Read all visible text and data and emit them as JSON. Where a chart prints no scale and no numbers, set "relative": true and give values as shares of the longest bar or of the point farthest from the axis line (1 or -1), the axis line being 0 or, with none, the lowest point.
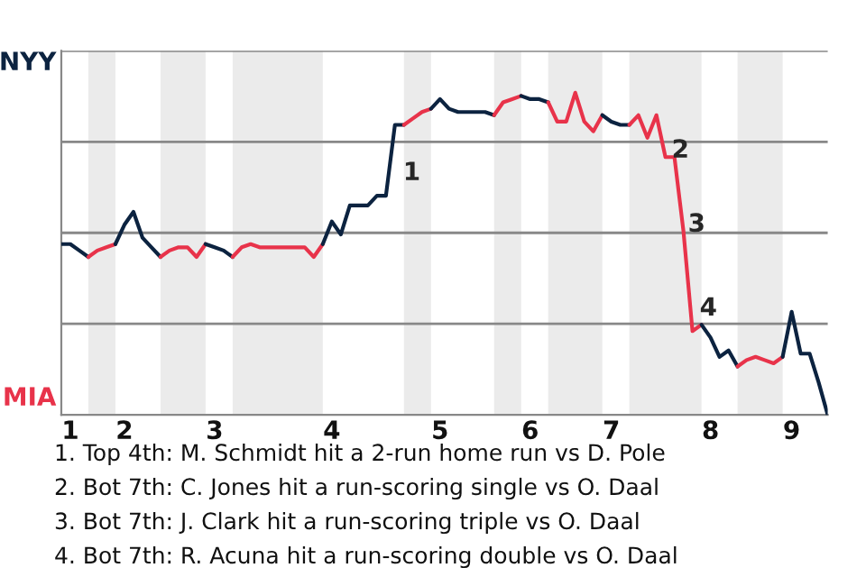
{
  "chart_data": {
    "type": "line",
    "relative": true,
    "grid": "y",
    "categories": [
      null,
      "1",
      null,
      null,
      null,
      null,
      null,
      "2",
      null,
      null,
      null,
      null,
      null,
      null,
      null,
      null,
      null,
      "3",
      null,
      null,
      null,
      null,
      null,
      null,
      null,
      null,
      null,
      null,
      null,
      null,
      "4",
      null,
      null,
      null,
      null,
      null,
      null,
      null,
      null,
      null,
      null,
      null,
      "5",
      null,
      null,
      null,
      null,
      null,
      null,
      null,
      null,
      null,
      "6",
      null,
      null,
      null,
      null,
      null,
      null,
      null,
      null,
      "7",
      null,
      null,
      null,
      null,
      null,
      null,
      null,
      null,
      null,
      null,
      "8",
      null,
      null,
      null,
      null,
      null,
      null,
      null,
      null,
      "9",
      null,
      null,
      null,
      null
    ],
    "series": [
      {
        "color": "#0c2340",
        "values": [
          0.53,
          0.53,
          0.51,
          0.49,
          null,
          null,
          null,
          null,
          null,
          null,
          null,
          null,
          null,
          null,
          null,
          null,
          null,
          null,
          null,
          null,
          null,
          null,
          null,
          null,
          null,
          null,
          null,
          null,
          null,
          null,
          null,
          null,
          null,
          null,
          null,
          null,
          null,
          null,
          null,
          null,
          null,
          null,
          null,
          null,
          null,
          null,
          null,
          null,
          null,
          null,
          null,
          null,
          null,
          null,
          null,
          null,
          null,
          null,
          null,
          null,
          null,
          null,
          null,
          null,
          null,
          null,
          null,
          null,
          null,
          null,
          null,
          null,
          null,
          null,
          null,
          null,
          null,
          null,
          null,
          null,
          null,
          null,
          null,
          null,
          null,
          null
        ]
      },
      {
        "color": "#e8334a",
        "values": [
          null,
          null,
          null,
          0.49,
          0.51,
          0.52,
          0.53,
          null,
          null,
          null,
          null,
          null,
          null,
          null,
          null,
          null,
          null,
          null,
          null,
          null,
          null,
          null,
          null,
          null,
          null,
          null,
          null,
          null,
          null,
          null,
          null,
          null,
          null,
          null,
          null,
          null,
          null,
          null,
          null,
          null,
          null,
          null,
          null,
          null,
          null,
          null,
          null,
          null,
          null,
          null,
          null,
          null,
          null,
          null,
          null,
          null,
          null,
          null,
          null,
          null,
          null,
          null,
          null,
          null,
          null,
          null,
          null,
          null,
          null,
          null,
          null,
          null,
          null,
          null,
          null,
          null,
          null,
          null,
          null,
          null,
          null,
          null,
          null,
          null,
          null,
          null
        ]
      },
      {
        "color": "#0c2340",
        "values": [
          null,
          null,
          null,
          null,
          null,
          null,
          0.53,
          0.59,
          0.63,
          0.55,
          0.52,
          0.49,
          null,
          null,
          null,
          null,
          null,
          null,
          null,
          null,
          null,
          null,
          null,
          null,
          null,
          null,
          null,
          null,
          null,
          null,
          null,
          null,
          null,
          null,
          null,
          null,
          null,
          null,
          null,
          null,
          null,
          null,
          null,
          null,
          null,
          null,
          null,
          null,
          null,
          null,
          null,
          null,
          null,
          null,
          null,
          null,
          null,
          null,
          null,
          null,
          null,
          null,
          null,
          null,
          null,
          null,
          null,
          null,
          null,
          null,
          null,
          null,
          null,
          null,
          null,
          null,
          null,
          null,
          null,
          null,
          null,
          null,
          null,
          null,
          null,
          null
        ]
      },
      {
        "color": "#e8334a",
        "values": [
          null,
          null,
          null,
          null,
          null,
          null,
          null,
          null,
          null,
          null,
          null,
          0.49,
          0.51,
          0.52,
          0.52,
          0.49,
          0.53,
          null,
          null,
          null,
          null,
          null,
          null,
          null,
          null,
          null,
          null,
          null,
          null,
          null,
          null,
          null,
          null,
          null,
          null,
          null,
          null,
          null,
          null,
          null,
          null,
          null,
          null,
          null,
          null,
          null,
          null,
          null,
          null,
          null,
          null,
          null,
          null,
          null,
          null,
          null,
          null,
          null,
          null,
          null,
          null,
          null,
          null,
          null,
          null,
          null,
          null,
          null,
          null,
          null,
          null,
          null,
          null,
          null,
          null,
          null,
          null,
          null,
          null,
          null,
          null,
          null,
          null,
          null,
          null,
          null
        ]
      },
      {
        "color": "#0c2340",
        "values": [
          null,
          null,
          null,
          null,
          null,
          null,
          null,
          null,
          null,
          null,
          null,
          null,
          null,
          null,
          null,
          null,
          0.53,
          0.52,
          0.51,
          0.49,
          null,
          null,
          null,
          null,
          null,
          null,
          null,
          null,
          null,
          null,
          null,
          null,
          null,
          null,
          null,
          null,
          null,
          null,
          null,
          null,
          null,
          null,
          null,
          null,
          null,
          null,
          null,
          null,
          null,
          null,
          null,
          null,
          null,
          null,
          null,
          null,
          null,
          null,
          null,
          null,
          null,
          null,
          null,
          null,
          null,
          null,
          null,
          null,
          null,
          null,
          null,
          null,
          null,
          null,
          null,
          null,
          null,
          null,
          null,
          null,
          null,
          null,
          null,
          null,
          null,
          null
        ]
      },
      {
        "color": "#e8334a",
        "values": [
          null,
          null,
          null,
          null,
          null,
          null,
          null,
          null,
          null,
          null,
          null,
          null,
          null,
          null,
          null,
          null,
          null,
          null,
          null,
          0.49,
          0.52,
          0.53,
          0.52,
          0.52,
          0.52,
          0.52,
          0.52,
          0.52,
          0.49,
          0.53,
          null,
          null,
          null,
          null,
          null,
          null,
          null,
          null,
          null,
          null,
          null,
          null,
          null,
          null,
          null,
          null,
          null,
          null,
          null,
          null,
          null,
          null,
          null,
          null,
          null,
          null,
          null,
          null,
          null,
          null,
          null,
          null,
          null,
          null,
          null,
          null,
          null,
          null,
          null,
          null,
          null,
          null,
          null,
          null,
          null,
          null,
          null,
          null,
          null,
          null,
          null,
          null,
          null,
          null,
          null,
          null
        ]
      },
      {
        "color": "#0c2340",
        "values": [
          null,
          null,
          null,
          null,
          null,
          null,
          null,
          null,
          null,
          null,
          null,
          null,
          null,
          null,
          null,
          null,
          null,
          null,
          null,
          null,
          null,
          null,
          null,
          null,
          null,
          null,
          null,
          null,
          null,
          0.53,
          0.6,
          0.56,
          0.65,
          0.65,
          0.65,
          0.68,
          0.68,
          0.9,
          0.9,
          null,
          null,
          null,
          null,
          null,
          null,
          null,
          null,
          null,
          null,
          null,
          null,
          null,
          null,
          null,
          null,
          null,
          null,
          null,
          null,
          null,
          null,
          null,
          null,
          null,
          null,
          null,
          null,
          null,
          null,
          null,
          null,
          null,
          null,
          null,
          null,
          null,
          null,
          null,
          null,
          null,
          null,
          null,
          null,
          null,
          null,
          null
        ]
      },
      {
        "color": "#e8334a",
        "values": [
          null,
          null,
          null,
          null,
          null,
          null,
          null,
          null,
          null,
          null,
          null,
          null,
          null,
          null,
          null,
          null,
          null,
          null,
          null,
          null,
          null,
          null,
          null,
          null,
          null,
          null,
          null,
          null,
          null,
          null,
          null,
          null,
          null,
          null,
          null,
          null,
          null,
          null,
          0.9,
          0.92,
          0.94,
          0.95,
          null,
          null,
          null,
          null,
          null,
          null,
          null,
          null,
          null,
          null,
          null,
          null,
          null,
          null,
          null,
          null,
          null,
          null,
          null,
          null,
          null,
          null,
          null,
          null,
          null,
          null,
          null,
          null,
          null,
          null,
          null,
          null,
          null,
          null,
          null,
          null,
          null,
          null,
          null,
          null,
          null,
          null,
          null,
          null
        ]
      },
      {
        "color": "#0c2340",
        "values": [
          null,
          null,
          null,
          null,
          null,
          null,
          null,
          null,
          null,
          null,
          null,
          null,
          null,
          null,
          null,
          null,
          null,
          null,
          null,
          null,
          null,
          null,
          null,
          null,
          null,
          null,
          null,
          null,
          null,
          null,
          null,
          null,
          null,
          null,
          null,
          null,
          null,
          null,
          null,
          null,
          null,
          0.95,
          0.98,
          0.95,
          0.94,
          0.94,
          0.94,
          0.94,
          0.93,
          null,
          null,
          null,
          null,
          null,
          null,
          null,
          null,
          null,
          null,
          null,
          null,
          null,
          null,
          null,
          null,
          null,
          null,
          null,
          null,
          null,
          null,
          null,
          null,
          null,
          null,
          null,
          null,
          null,
          null,
          null,
          null,
          null,
          null,
          null,
          null,
          null
        ]
      },
      {
        "color": "#e8334a",
        "values": [
          null,
          null,
          null,
          null,
          null,
          null,
          null,
          null,
          null,
          null,
          null,
          null,
          null,
          null,
          null,
          null,
          null,
          null,
          null,
          null,
          null,
          null,
          null,
          null,
          null,
          null,
          null,
          null,
          null,
          null,
          null,
          null,
          null,
          null,
          null,
          null,
          null,
          null,
          null,
          null,
          null,
          null,
          null,
          null,
          null,
          null,
          null,
          null,
          0.93,
          0.97,
          0.98,
          0.99,
          null,
          null,
          null,
          null,
          null,
          null,
          null,
          null,
          null,
          null,
          null,
          null,
          null,
          null,
          null,
          null,
          null,
          null,
          null,
          null,
          null,
          null,
          null,
          null,
          null,
          null,
          null,
          null,
          null,
          null,
          null,
          null,
          null,
          null
        ]
      },
      {
        "color": "#0c2340",
        "values": [
          null,
          null,
          null,
          null,
          null,
          null,
          null,
          null,
          null,
          null,
          null,
          null,
          null,
          null,
          null,
          null,
          null,
          null,
          null,
          null,
          null,
          null,
          null,
          null,
          null,
          null,
          null,
          null,
          null,
          null,
          null,
          null,
          null,
          null,
          null,
          null,
          null,
          null,
          null,
          null,
          null,
          null,
          null,
          null,
          null,
          null,
          null,
          null,
          null,
          null,
          null,
          0.99,
          0.98,
          0.98,
          0.97,
          null,
          null,
          null,
          null,
          null,
          null,
          null,
          null,
          null,
          null,
          null,
          null,
          null,
          null,
          null,
          null,
          null,
          null,
          null,
          null,
          null,
          null,
          null,
          null,
          null,
          null,
          null,
          null,
          null,
          null,
          null
        ]
      },
      {
        "color": "#e8334a",
        "values": [
          null,
          null,
          null,
          null,
          null,
          null,
          null,
          null,
          null,
          null,
          null,
          null,
          null,
          null,
          null,
          null,
          null,
          null,
          null,
          null,
          null,
          null,
          null,
          null,
          null,
          null,
          null,
          null,
          null,
          null,
          null,
          null,
          null,
          null,
          null,
          null,
          null,
          null,
          null,
          null,
          null,
          null,
          null,
          null,
          null,
          null,
          null,
          null,
          null,
          null,
          null,
          null,
          null,
          null,
          0.97,
          0.91,
          0.91,
          1,
          0.91,
          0.88,
          0.93,
          null,
          null,
          null,
          null,
          null,
          null,
          null,
          null,
          null,
          null,
          null,
          null,
          null,
          null,
          null,
          null,
          null,
          null,
          null,
          null,
          null,
          null,
          null,
          null,
          null
        ]
      },
      {
        "color": "#0c2340",
        "values": [
          null,
          null,
          null,
          null,
          null,
          null,
          null,
          null,
          null,
          null,
          null,
          null,
          null,
          null,
          null,
          null,
          null,
          null,
          null,
          null,
          null,
          null,
          null,
          null,
          null,
          null,
          null,
          null,
          null,
          null,
          null,
          null,
          null,
          null,
          null,
          null,
          null,
          null,
          null,
          null,
          null,
          null,
          null,
          null,
          null,
          null,
          null,
          null,
          null,
          null,
          null,
          null,
          null,
          null,
          null,
          null,
          null,
          null,
          null,
          null,
          0.93,
          0.91,
          0.9,
          0.9,
          null,
          null,
          null,
          null,
          null,
          null,
          null,
          null,
          null,
          null,
          null,
          null,
          null,
          null,
          null,
          null,
          null,
          null,
          null,
          null,
          null,
          null
        ]
      },
      {
        "color": "#e8334a",
        "values": [
          null,
          null,
          null,
          null,
          null,
          null,
          null,
          null,
          null,
          null,
          null,
          null,
          null,
          null,
          null,
          null,
          null,
          null,
          null,
          null,
          null,
          null,
          null,
          null,
          null,
          null,
          null,
          null,
          null,
          null,
          null,
          null,
          null,
          null,
          null,
          null,
          null,
          null,
          null,
          null,
          null,
          null,
          null,
          null,
          null,
          null,
          null,
          null,
          null,
          null,
          null,
          null,
          null,
          null,
          null,
          null,
          null,
          null,
          null,
          null,
          null,
          null,
          null,
          0.9,
          0.93,
          0.86,
          0.93,
          0.8,
          0.8,
          0.57,
          0.26,
          0.28,
          null,
          null,
          null,
          null,
          null,
          null,
          null,
          null,
          null,
          null,
          null,
          null,
          null,
          null
        ]
      },
      {
        "color": "#0c2340",
        "values": [
          null,
          null,
          null,
          null,
          null,
          null,
          null,
          null,
          null,
          null,
          null,
          null,
          null,
          null,
          null,
          null,
          null,
          null,
          null,
          null,
          null,
          null,
          null,
          null,
          null,
          null,
          null,
          null,
          null,
          null,
          null,
          null,
          null,
          null,
          null,
          null,
          null,
          null,
          null,
          null,
          null,
          null,
          null,
          null,
          null,
          null,
          null,
          null,
          null,
          null,
          null,
          null,
          null,
          null,
          null,
          null,
          null,
          null,
          null,
          null,
          null,
          null,
          null,
          null,
          null,
          null,
          null,
          null,
          null,
          null,
          null,
          0.28,
          0.24,
          0.18,
          0.2,
          0.15,
          null,
          null,
          null,
          null,
          null,
          null,
          null,
          null,
          null,
          null
        ]
      },
      {
        "color": "#e8334a",
        "values": [
          null,
          null,
          null,
          null,
          null,
          null,
          null,
          null,
          null,
          null,
          null,
          null,
          null,
          null,
          null,
          null,
          null,
          null,
          null,
          null,
          null,
          null,
          null,
          null,
          null,
          null,
          null,
          null,
          null,
          null,
          null,
          null,
          null,
          null,
          null,
          null,
          null,
          null,
          null,
          null,
          null,
          null,
          null,
          null,
          null,
          null,
          null,
          null,
          null,
          null,
          null,
          null,
          null,
          null,
          null,
          null,
          null,
          null,
          null,
          null,
          null,
          null,
          null,
          null,
          null,
          null,
          null,
          null,
          null,
          null,
          null,
          null,
          null,
          null,
          null,
          0.15,
          0.17,
          0.18,
          0.17,
          0.16,
          0.18,
          null,
          null,
          null,
          null,
          null
        ]
      },
      {
        "color": "#0c2340",
        "values": [
          null,
          null,
          null,
          null,
          null,
          null,
          null,
          null,
          null,
          null,
          null,
          null,
          null,
          null,
          null,
          null,
          null,
          null,
          null,
          null,
          null,
          null,
          null,
          null,
          null,
          null,
          null,
          null,
          null,
          null,
          null,
          null,
          null,
          null,
          null,
          null,
          null,
          null,
          null,
          null,
          null,
          null,
          null,
          null,
          null,
          null,
          null,
          null,
          null,
          null,
          null,
          null,
          null,
          null,
          null,
          null,
          null,
          null,
          null,
          null,
          null,
          null,
          null,
          null,
          null,
          null,
          null,
          null,
          null,
          null,
          null,
          null,
          null,
          null,
          null,
          null,
          null,
          null,
          null,
          null,
          0.18,
          0.32,
          0.19,
          0.19,
          0.1,
          0
        ]
      }
    ],
    "annotations": [
      "NYY",
      "MIA",
      "1",
      "2",
      "3",
      "4",
      "1. Top 4th: M. Schmidt hit a 2-run home run vs D. Pole",
      "2. Bot 7th: C. Jones hit a run-scoring single vs O. Daal",
      "3. Bot 7th: J. Clark hit a run-scoring triple vs O. Daal",
      "4. Bot 7th: R. Acuna hit a run-scoring double vs O. Daal"
    ]
  }
}
